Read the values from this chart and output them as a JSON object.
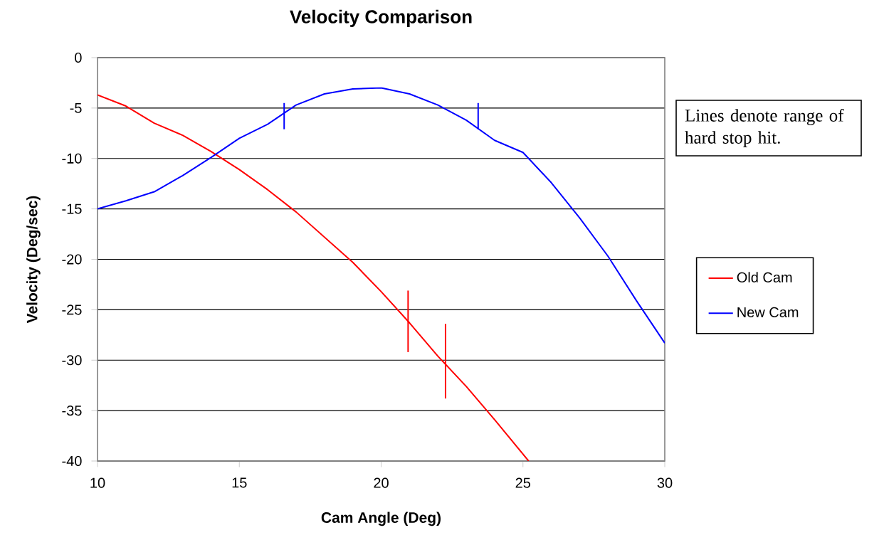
{
  "chart_data": {
    "type": "line",
    "title": "Velocity Comparison",
    "xlabel": "Cam Angle (Deg)",
    "ylabel": "Velocity (Deg/sec)",
    "xlim": [
      10,
      30
    ],
    "ylim": [
      -40,
      0
    ],
    "xticks": [
      10,
      15,
      20,
      25,
      30
    ],
    "yticks": [
      -40,
      -35,
      -30,
      -25,
      -20,
      -15,
      -10,
      -5,
      0
    ],
    "grid": "y",
    "legend": "right",
    "marker": "none",
    "line_style": "solid",
    "annotations": [
      "Lines denote range of hard stop hit."
    ],
    "series": [
      {
        "name": "Old Cam",
        "color": "#ff0000",
        "x": [
          10,
          11,
          12,
          13,
          14,
          15,
          16,
          17,
          18,
          19,
          20,
          21,
          22,
          23,
          24,
          25.2
        ],
        "values": [
          -3.7,
          -4.8,
          -6.5,
          -7.7,
          -9.3,
          -11.1,
          -13.1,
          -15.3,
          -17.8,
          -20.3,
          -23.2,
          -26.3,
          -29.6,
          -32.6,
          -35.9,
          -40
        ]
      },
      {
        "name": "New Cam",
        "color": "#0000ff",
        "x": [
          10,
          11,
          12,
          13,
          14,
          15,
          16,
          17,
          18,
          19,
          20,
          21,
          22,
          23,
          24,
          25,
          26,
          27,
          28,
          29,
          30
        ],
        "values": [
          -15.0,
          -14.2,
          -13.3,
          -11.7,
          -9.9,
          -8.0,
          -6.6,
          -4.7,
          -3.6,
          -3.1,
          -3.0,
          -3.6,
          -4.7,
          -6.2,
          -8.2,
          -9.4,
          -12.4,
          -15.9,
          -19.7,
          -24.1,
          -28.3
        ]
      },
      {
        "color": "#ff0000",
        "x": [
          20.95,
          20.95
        ],
        "values": [
          -23.1,
          -29.2
        ]
      },
      {
        "color": "#ff0000",
        "x": [
          22.27,
          22.27
        ],
        "values": [
          -26.4,
          -33.8
        ]
      },
      {
        "color": "#0000ff",
        "x": [
          16.58,
          16.58
        ],
        "values": [
          -4.5,
          -7.1
        ]
      },
      {
        "color": "#0000ff",
        "x": [
          23.42,
          23.42
        ],
        "values": [
          -4.5,
          -7.1
        ]
      }
    ]
  }
}
